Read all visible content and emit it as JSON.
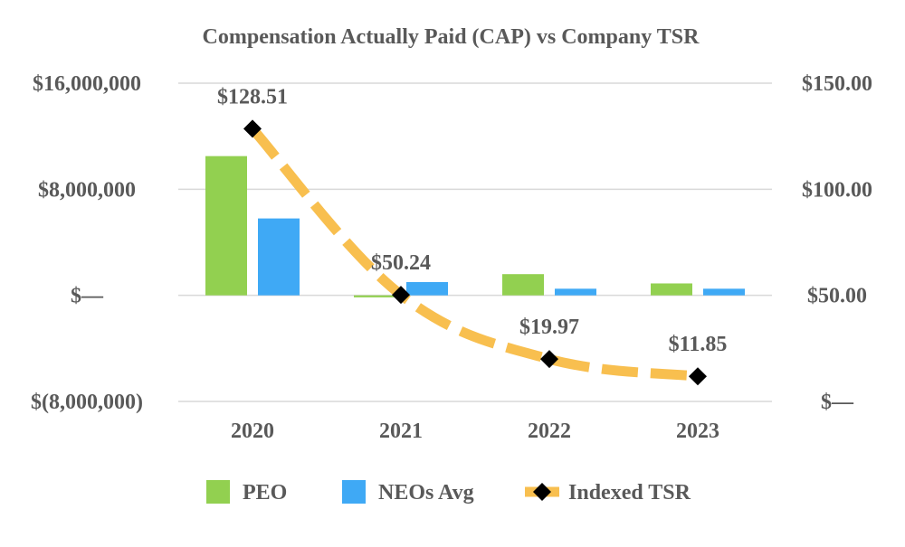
{
  "chart_data": {
    "type": "bar",
    "title": "Compensation Actually Paid (CAP) vs Company TSR",
    "categories": [
      "2020",
      "2021",
      "2022",
      "2023"
    ],
    "series": [
      {
        "name": "PEO",
        "type": "bar",
        "axis": "left",
        "color": "#92d050",
        "values": [
          10500000,
          -150000,
          1600000,
          900000
        ]
      },
      {
        "name": "NEOs Avg",
        "type": "bar",
        "axis": "left",
        "color": "#3fa9f5",
        "values": [
          5800000,
          1000000,
          500000,
          500000
        ]
      },
      {
        "name": "Indexed TSR",
        "type": "line",
        "axis": "right",
        "color": "#f8bf4f",
        "marker_color": "#000000",
        "values": [
          128.51,
          50.24,
          19.97,
          11.85
        ],
        "data_labels": [
          "$128.51",
          "$50.24",
          "$19.97",
          "$11.85"
        ]
      }
    ],
    "left_axis": {
      "ylim": [
        -8000000,
        16000000
      ],
      "ticks": [
        16000000,
        8000000,
        0,
        -8000000
      ],
      "tick_labels": [
        "$16,000,000",
        "$8,000,000",
        "$—",
        "$(8,000,000)"
      ]
    },
    "right_axis": {
      "ylim": [
        0,
        150
      ],
      "ticks": [
        150,
        100,
        50,
        0
      ],
      "tick_labels": [
        "$150.00",
        "$100.00",
        "$50.00",
        "$—"
      ]
    },
    "legend": {
      "placement": "bottom",
      "labels": [
        "PEO",
        "NEOs Avg",
        "Indexed TSR"
      ]
    },
    "grid": true
  }
}
